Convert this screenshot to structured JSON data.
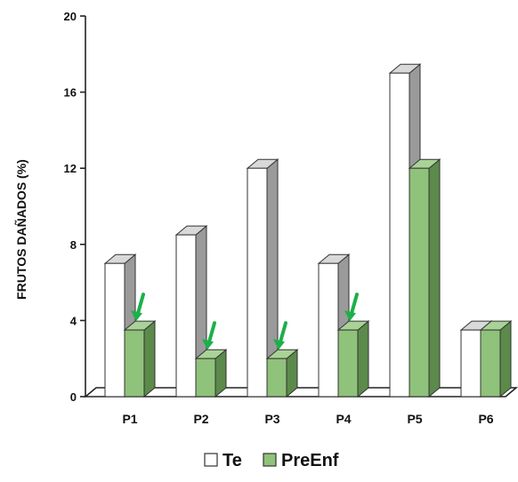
{
  "chart_data": {
    "type": "bar",
    "categories": [
      "P1",
      "P2",
      "P3",
      "P4",
      "P5",
      "P6"
    ],
    "series": [
      {
        "name": "Te",
        "values": [
          7.0,
          8.5,
          12.0,
          7.0,
          17.0,
          3.5
        ],
        "color": "#ffffff"
      },
      {
        "name": "PreEnf",
        "values": [
          3.5,
          2.0,
          2.0,
          3.5,
          12.0,
          3.5
        ],
        "color": "#8fc27a"
      }
    ],
    "ylabel": "FRUTOS DAÑADOS (%)",
    "ylim": [
      0,
      20
    ],
    "yticks": [
      0,
      4,
      8,
      12,
      16,
      20
    ],
    "grid": false,
    "legend_position": "bottom-center",
    "annotations": {
      "type": "green-down-arrows",
      "color": "#1cb04a",
      "on": [
        {
          "category": "P1",
          "series": "PreEnf"
        },
        {
          "category": "P2",
          "series": "PreEnf"
        },
        {
          "category": "P3",
          "series": "PreEnf"
        },
        {
          "category": "P4",
          "series": "PreEnf"
        }
      ]
    }
  }
}
